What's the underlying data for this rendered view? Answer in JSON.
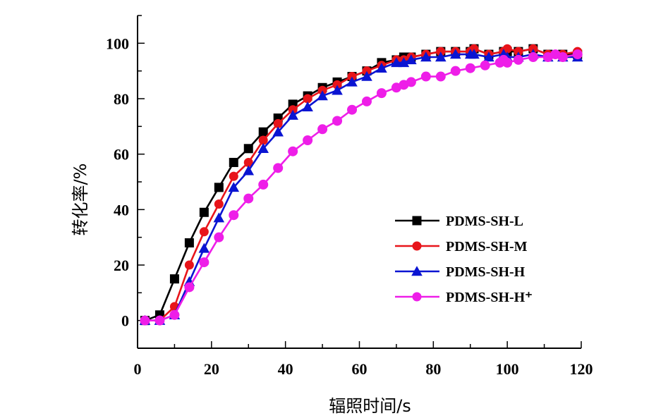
{
  "chart_data": {
    "type": "line",
    "title": "",
    "xlabel": "辐照时间/s",
    "ylabel": "转化率/%",
    "xlim": [
      0,
      120
    ],
    "ylim": [
      -10,
      110
    ],
    "xticks": [
      0,
      20,
      40,
      60,
      80,
      100,
      120
    ],
    "yticks": [
      0,
      20,
      40,
      60,
      80,
      100
    ],
    "grid": false,
    "legend_position": "center-right",
    "series": [
      {
        "name": "PDMS-SH-L",
        "color": "#000000",
        "marker": "square",
        "x": [
          2,
          6,
          10,
          14,
          18,
          22,
          26,
          30,
          34,
          38,
          42,
          46,
          50,
          54,
          58,
          62,
          66,
          70,
          72,
          74,
          78,
          82,
          86,
          90,
          91,
          95,
          99,
          100,
          103,
          107,
          111,
          115,
          119
        ],
        "y": [
          0,
          2,
          15,
          28,
          39,
          48,
          57,
          62,
          68,
          73,
          78,
          81,
          84,
          86,
          88,
          90,
          93,
          94,
          95,
          95,
          96,
          97,
          97,
          97,
          98,
          96,
          97,
          97,
          97,
          98,
          96,
          96,
          96
        ]
      },
      {
        "name": "PDMS-SH-M",
        "color": "#e8141a",
        "marker": "circle",
        "x": [
          2,
          6,
          10,
          14,
          18,
          22,
          26,
          30,
          34,
          38,
          42,
          46,
          50,
          54,
          58,
          62,
          66,
          70,
          72,
          74,
          78,
          82,
          86,
          90,
          91,
          95,
          99,
          100,
          103,
          107,
          111,
          115,
          119
        ],
        "y": [
          0,
          0,
          5,
          20,
          32,
          42,
          52,
          57,
          65,
          71,
          76,
          80,
          83,
          85,
          88,
          90,
          92,
          94,
          94,
          95,
          96,
          97,
          97,
          97,
          98,
          96,
          97,
          98,
          97,
          98,
          96,
          96,
          97
        ]
      },
      {
        "name": "PDMS-SH-H",
        "color": "#0a14d2",
        "marker": "triangle",
        "x": [
          2,
          6,
          10,
          14,
          18,
          22,
          26,
          30,
          34,
          38,
          42,
          46,
          50,
          54,
          58,
          62,
          66,
          70,
          72,
          74,
          78,
          82,
          86,
          90,
          91,
          95,
          99,
          100,
          103,
          107,
          111,
          115,
          119
        ],
        "y": [
          0,
          0,
          2,
          14,
          26,
          37,
          48,
          54,
          62,
          68,
          74,
          77,
          81,
          83,
          86,
          88,
          91,
          93,
          93,
          94,
          95,
          95,
          96,
          96,
          96,
          95,
          96,
          95,
          95,
          96,
          95,
          95,
          95
        ]
      },
      {
        "name": "PDMS-SH-H⁺",
        "color": "#ee1ee8",
        "marker": "circle",
        "x": [
          2,
          6,
          10,
          14,
          18,
          22,
          26,
          30,
          34,
          38,
          42,
          46,
          50,
          54,
          58,
          62,
          66,
          70,
          72,
          74,
          78,
          82,
          86,
          90,
          94,
          98,
          99,
          100,
          103,
          107,
          111,
          113,
          115,
          119
        ],
        "y": [
          0,
          0,
          2,
          12,
          21,
          30,
          38,
          44,
          49,
          55,
          61,
          65,
          69,
          72,
          76,
          79,
          82,
          84,
          85,
          86,
          88,
          88,
          90,
          91,
          92,
          93,
          94,
          93,
          94,
          95,
          95,
          96,
          95,
          96
        ]
      }
    ]
  }
}
